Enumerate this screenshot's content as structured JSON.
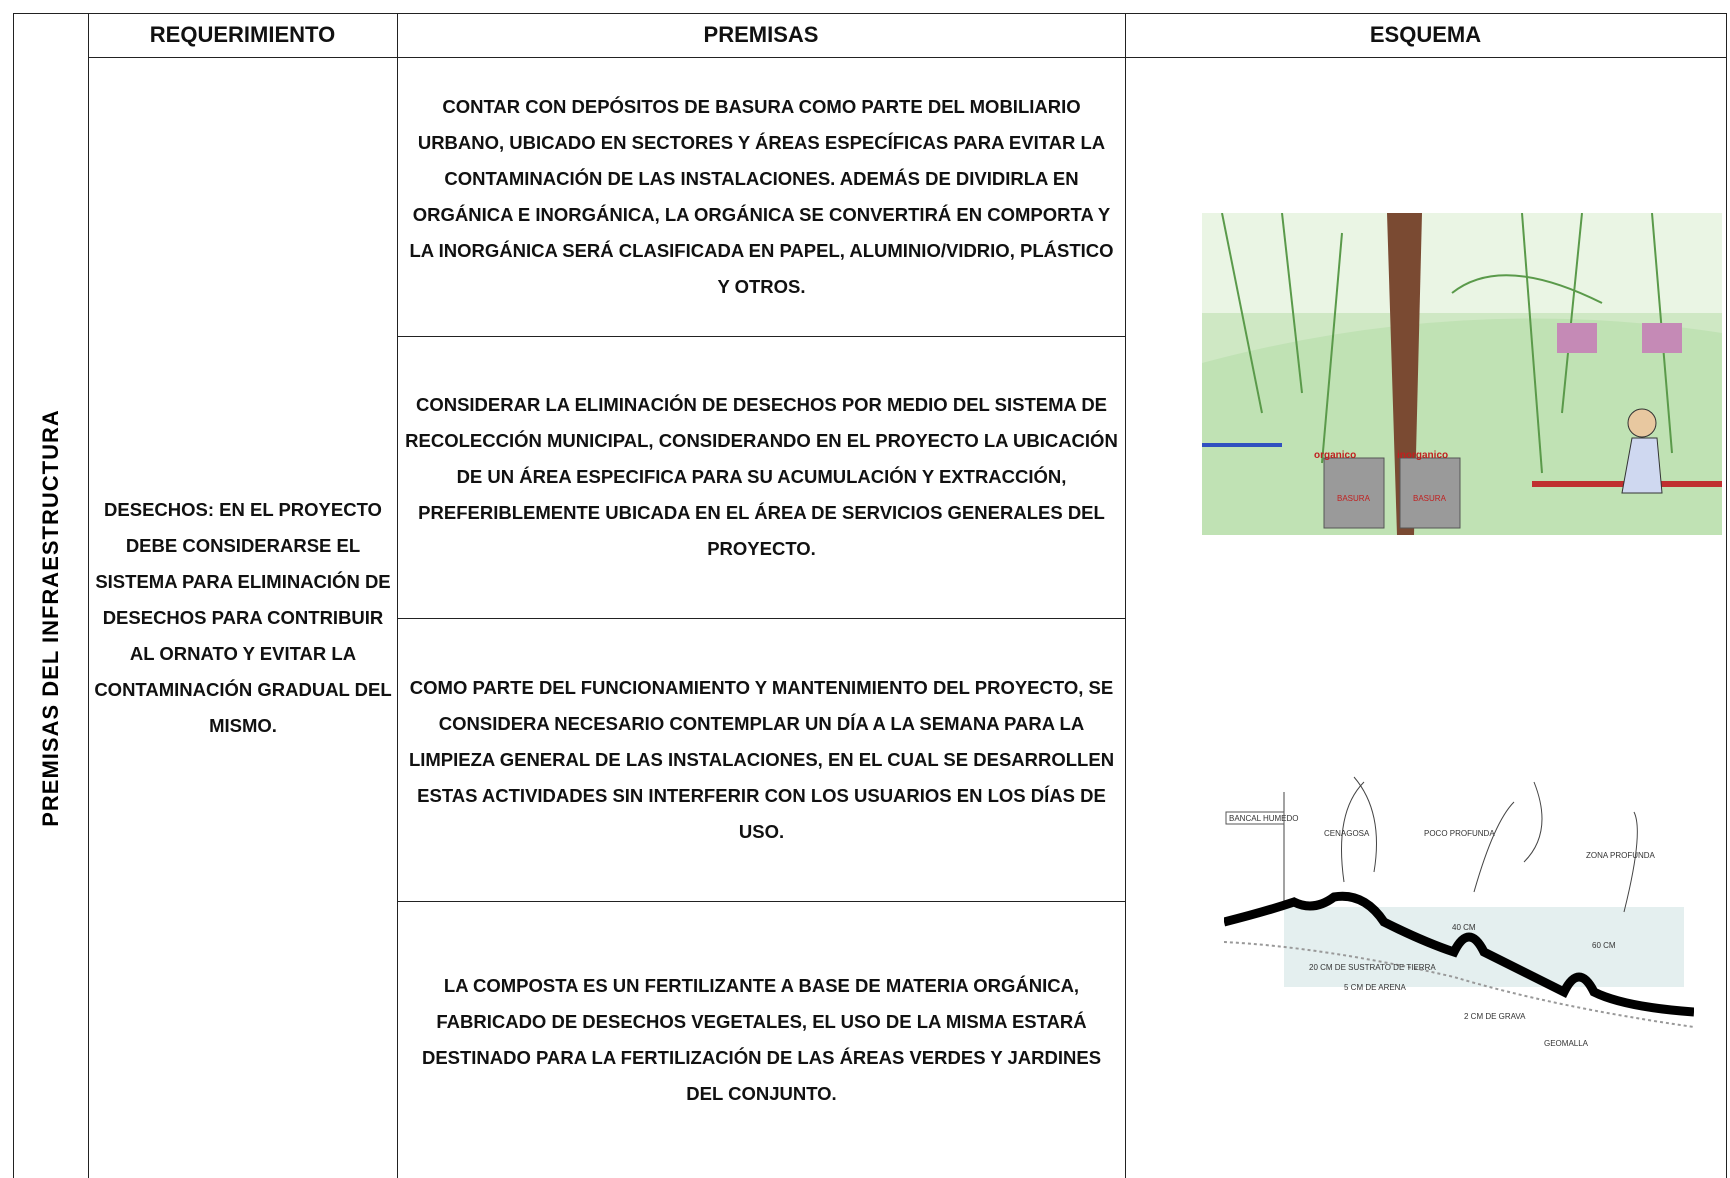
{
  "side_label": "PREMISAS DEL INFRAESTRUCTURA",
  "table": {
    "headers": [
      "REQUERIMIENTO",
      "PREMISAS",
      "ESQUEMA"
    ],
    "requirement": "DESECHOS: EN EL PROYECTO DEBE CONSIDERARSE EL SISTEMA PARA ELIMINACIÓN DE DESECHOS PARA CONTRIBUIR AL ORNATO Y EVITAR LA CONTAMINACIÓN GRADUAL DEL MISMO.",
    "premises": [
      "CONTAR CON DEPÓSITOS DE BASURA COMO PARTE DEL MOBILIARIO URBANO, UBICADO EN SECTORES Y ÁREAS ESPECÍFICAS PARA EVITAR LA CONTAMINACIÓN DE LAS INSTALACIONES. ADEMÁS DE DIVIDIRLA EN ORGÁNICA E INORGÁNICA, LA ORGÁNICA SE CONVERTIRÁ EN COMPORTA Y LA INORGÁNICA SERÁ CLASIFICADA EN PAPEL, ALUMINIO/VIDRIO, PLÁSTICO Y OTROS.",
      "CONSIDERAR LA ELIMINACIÓN DE DESECHOS POR MEDIO DEL SISTEMA DE RECOLECCIÓN MUNICIPAL, CONSIDERANDO EN EL PROYECTO LA UBICACIÓN DE UN ÁREA ESPECIFICA PARA SU ACUMULACIÓN Y EXTRACCIÓN, PREFERIBLEMENTE UBICADA EN EL ÁREA DE SERVICIOS GENERALES DEL PROYECTO.",
      "COMO PARTE DEL FUNCIONAMIENTO Y MANTENIMIENTO DEL PROYECTO, SE CONSIDERA NECESARIO CONTEMPLAR UN DÍA A LA SEMANA PARA LA LIMPIEZA GENERAL DE LAS INSTALACIONES, EN EL CUAL SE DESARROLLEN ESTAS ACTIVIDADES SIN INTERFERIR CON LOS USUARIOS EN LOS DÍAS DE USO.",
      "LA COMPOSTA ES UN FERTILIZANTE A BASE DE MATERIA ORGÁNICA, FABRICADO DE DESECHOS VEGETALES, EL USO DE LA MISMA ESTARÁ DESTINADO PARA LA FERTILIZACIÓN DE LAS ÁREAS VERDES Y JARDINES DEL CONJUNTO."
    ],
    "schema": {
      "image1_labels": [
        "organico",
        "inorganico",
        "BASURA",
        "BASURA"
      ],
      "image2_labels": [
        "BANCAL HUMEDO",
        "CENAGOSA",
        "POCO PROFUNDA",
        "ZONA PROFUNDA",
        "40 CM",
        "60 CM",
        "20 CM DE SUSTRATO DE TIERRA",
        "5 CM DE ARENA",
        "2 CM DE GRAVA",
        "GEOMALLA"
      ]
    }
  }
}
